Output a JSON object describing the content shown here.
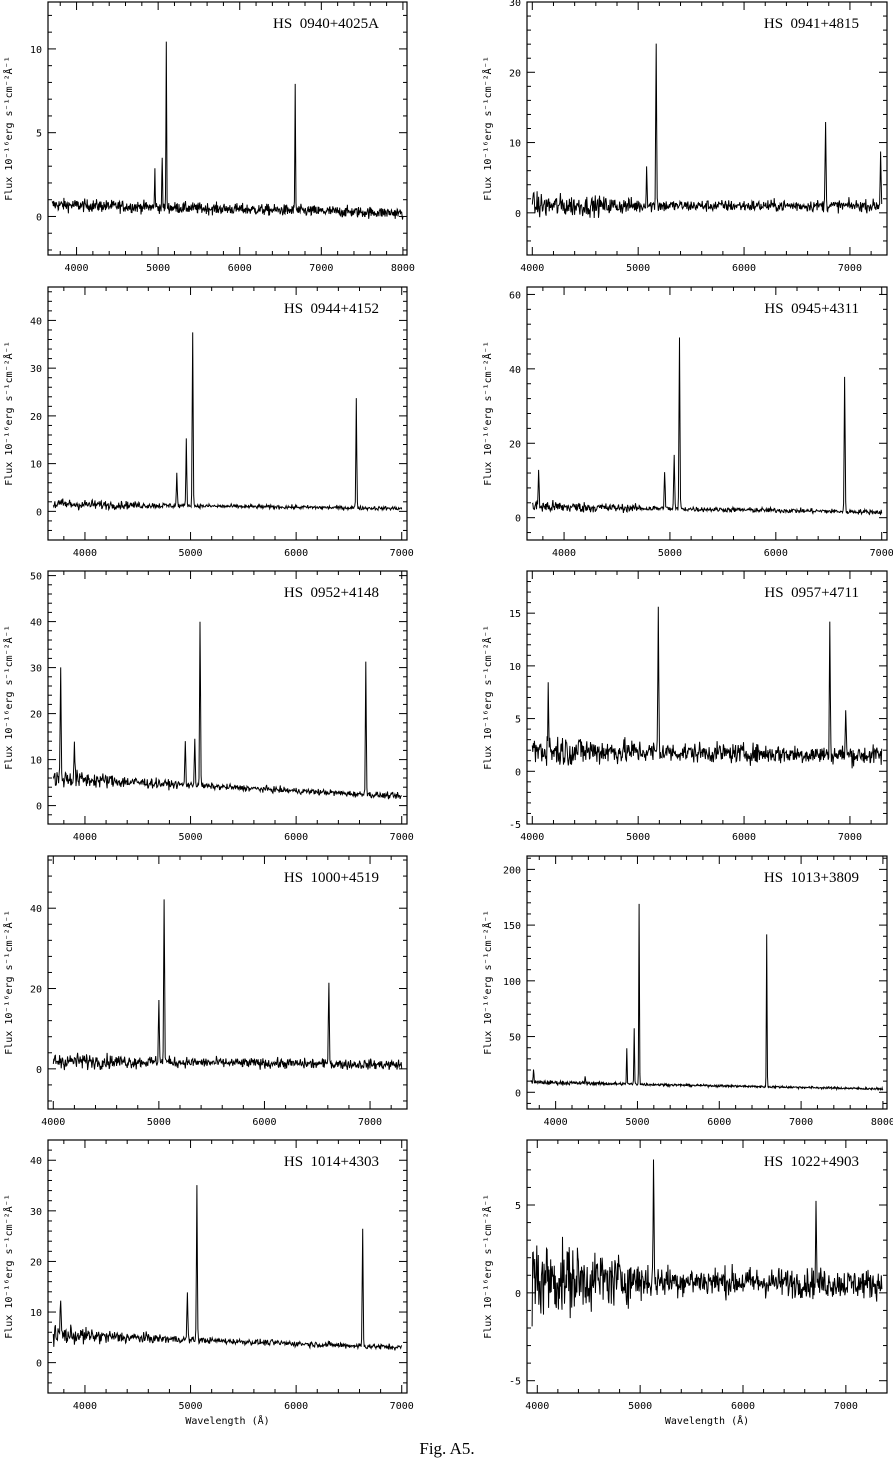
{
  "caption": "Fig. A5.",
  "chart_data": [
    {
      "type": "line",
      "title": "HS 0940+4025A",
      "xlabel": "",
      "ylabel": "Flux 10⁻¹⁶erg s⁻¹cm⁻²Å⁻¹",
      "xlim": [
        3650,
        8050
      ],
      "ylim": [
        -2.3,
        12.8
      ],
      "xticks": [
        4000,
        5000,
        6000,
        7000,
        8000
      ],
      "yticks": [
        0,
        5,
        10
      ],
      "continuum": [
        0.7,
        0.2
      ],
      "noise": [
        0.45,
        0.4
      ],
      "lines": [
        [
          4960,
          2.7
        ],
        [
          5050,
          3.5
        ],
        [
          5100,
          10.3
        ],
        [
          6680,
          7.9
        ]
      ]
    },
    {
      "type": "line",
      "title": "HS 0941+4815",
      "xlabel": "",
      "ylabel": "Flux 10⁻¹⁶erg s⁻¹cm⁻²Å⁻¹",
      "xlim": [
        3950,
        7350
      ],
      "ylim": [
        -6,
        30
      ],
      "xticks": [
        4000,
        5000,
        6000,
        7000
      ],
      "yticks": [
        0,
        10,
        20,
        30
      ],
      "continuum": [
        1.0,
        1.0
      ],
      "noise": [
        2.2,
        1.0
      ],
      "lines": [
        [
          5080,
          6.5
        ],
        [
          5170,
          24
        ],
        [
          6770,
          13.5
        ],
        [
          7290,
          8.5
        ]
      ]
    },
    {
      "type": "line",
      "title": "HS 0944+4152",
      "xlabel": "",
      "ylabel": "Flux 10⁻¹⁶erg s⁻¹cm⁻²Å⁻¹",
      "xlim": [
        3650,
        7050
      ],
      "ylim": [
        -6,
        47
      ],
      "xticks": [
        4000,
        5000,
        6000,
        7000
      ],
      "yticks": [
        0,
        10,
        20,
        30,
        40
      ],
      "continuum": [
        1.5,
        0.6
      ],
      "noise": [
        1.5,
        0.5
      ],
      "lines": [
        [
          4870,
          8
        ],
        [
          4960,
          15
        ],
        [
          5020,
          38
        ],
        [
          6570,
          23.5
        ]
      ]
    },
    {
      "type": "line",
      "title": "HS 0945+4311",
      "xlabel": "",
      "ylabel": "Flux 10⁻¹⁶erg s⁻¹cm⁻²Å⁻¹",
      "xlim": [
        3650,
        7050
      ],
      "ylim": [
        -6,
        62
      ],
      "xticks": [
        4000,
        5000,
        6000,
        7000
      ],
      "yticks": [
        0,
        20,
        40,
        60
      ],
      "continuum": [
        3,
        1.5
      ],
      "noise": [
        2.2,
        0.8
      ],
      "lines": [
        [
          3760,
          13
        ],
        [
          4950,
          13
        ],
        [
          5040,
          17
        ],
        [
          5090,
          48
        ],
        [
          6650,
          38
        ]
      ]
    },
    {
      "type": "line",
      "title": "HS 0952+4148",
      "xlabel": "",
      "ylabel": "Flux 10⁻¹⁶erg s⁻¹cm⁻²Å⁻¹",
      "xlim": [
        3650,
        7050
      ],
      "ylim": [
        -4,
        51
      ],
      "xticks": [
        4000,
        5000,
        6000,
        7000
      ],
      "yticks": [
        0,
        10,
        20,
        30,
        40,
        50
      ],
      "continuum": [
        6,
        2
      ],
      "noise": [
        2.5,
        0.8
      ],
      "lines": [
        [
          3770,
          29
        ],
        [
          3900,
          14
        ],
        [
          4950,
          14
        ],
        [
          5040,
          15
        ],
        [
          5090,
          40
        ],
        [
          6660,
          32
        ]
      ]
    },
    {
      "type": "line",
      "title": "HS 0957+4711",
      "xlabel": "",
      "ylabel": "Flux 10⁻¹⁶erg s⁻¹cm⁻²Å⁻¹",
      "xlim": [
        3950,
        7350
      ],
      "ylim": [
        -5,
        19
      ],
      "xticks": [
        4000,
        5000,
        6000,
        7000
      ],
      "yticks": [
        -5,
        0,
        5,
        10,
        15
      ],
      "continuum": [
        2,
        1.5
      ],
      "noise": [
        2.0,
        1.1
      ],
      "lines": [
        [
          4150,
          8
        ],
        [
          5190,
          15.5
        ],
        [
          6810,
          13.5
        ],
        [
          6960,
          6
        ]
      ]
    },
    {
      "type": "line",
      "title": "HS 1000+4519",
      "xlabel": "",
      "ylabel": "Flux 10⁻¹⁶erg s⁻¹cm⁻²Å⁻¹",
      "xlim": [
        3950,
        7350
      ],
      "ylim": [
        -10,
        53
      ],
      "xticks": [
        4000,
        5000,
        6000,
        7000
      ],
      "yticks": [
        0,
        20,
        40
      ],
      "continuum": [
        2,
        1
      ],
      "noise": [
        2.5,
        1.5
      ],
      "lines": [
        [
          5000,
          18
        ],
        [
          5050,
          42.5
        ],
        [
          6610,
          23
        ]
      ]
    },
    {
      "type": "line",
      "title": "HS 1013+3809",
      "xlabel": "",
      "ylabel": "Flux 10⁻¹⁶erg s⁻¹cm⁻²Å⁻¹",
      "xlim": [
        3650,
        8050
      ],
      "ylim": [
        -15,
        212
      ],
      "xticks": [
        4000,
        5000,
        6000,
        7000,
        8000
      ],
      "yticks": [
        0,
        50,
        100,
        150,
        200
      ],
      "continuum": [
        9,
        3
      ],
      "noise": [
        2.5,
        1.2
      ],
      "lines": [
        [
          3730,
          22
        ],
        [
          4360,
          15
        ],
        [
          4870,
          40
        ],
        [
          4960,
          58
        ],
        [
          5020,
          170
        ],
        [
          6580,
          142
        ]
      ]
    },
    {
      "type": "line",
      "title": "HS 1014+4303",
      "xlabel": "Wavelength (Å)",
      "ylabel": "Flux 10⁻¹⁶erg s⁻¹cm⁻²Å⁻¹",
      "xlim": [
        3650,
        7050
      ],
      "ylim": [
        -6,
        44
      ],
      "xticks": [
        4000,
        5000,
        6000,
        7000
      ],
      "yticks": [
        0,
        10,
        20,
        30,
        40
      ],
      "continuum": [
        5.5,
        3
      ],
      "noise": [
        2.2,
        0.7
      ],
      "lines": [
        [
          3770,
          13
        ],
        [
          4970,
          14
        ],
        [
          5060,
          35
        ],
        [
          6630,
          26
        ]
      ]
    },
    {
      "type": "line",
      "title": "HS 1022+4903",
      "xlabel": "Wavelength (Å)",
      "ylabel": "Flux 10⁻¹⁶erg s⁻¹cm⁻²Å⁻¹",
      "xlim": [
        3900,
        7400
      ],
      "ylim": [
        -5.7,
        8.7
      ],
      "xticks": [
        4000,
        5000,
        6000,
        7000
      ],
      "yticks": [
        -5,
        0,
        5
      ],
      "continuum": [
        0.8,
        0.5
      ],
      "noise": [
        2.8,
        1.0
      ],
      "lines": [
        [
          5130,
          7.2
        ],
        [
          6710,
          4.8
        ]
      ]
    }
  ]
}
